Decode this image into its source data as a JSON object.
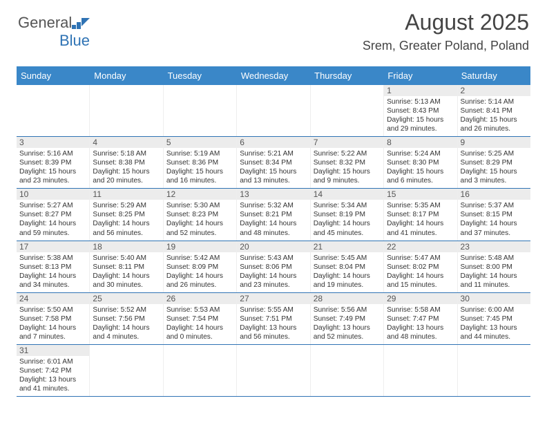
{
  "logo": {
    "text1": "General",
    "text2": "Blue"
  },
  "title": "August 2025",
  "location": "Srem, Greater Poland, Poland",
  "colors": {
    "header_bg": "#3a87c8",
    "header_fg": "#ffffff",
    "row_border": "#2f73b4",
    "daynum_bg": "#ececec",
    "text": "#333333"
  },
  "day_labels": [
    "Sunday",
    "Monday",
    "Tuesday",
    "Wednesday",
    "Thursday",
    "Friday",
    "Saturday"
  ],
  "first_weekday_index": 5,
  "days": [
    {
      "n": 1,
      "sr": "5:13 AM",
      "ss": "8:43 PM",
      "dl": "15 hours and 29 minutes."
    },
    {
      "n": 2,
      "sr": "5:14 AM",
      "ss": "8:41 PM",
      "dl": "15 hours and 26 minutes."
    },
    {
      "n": 3,
      "sr": "5:16 AM",
      "ss": "8:39 PM",
      "dl": "15 hours and 23 minutes."
    },
    {
      "n": 4,
      "sr": "5:18 AM",
      "ss": "8:38 PM",
      "dl": "15 hours and 20 minutes."
    },
    {
      "n": 5,
      "sr": "5:19 AM",
      "ss": "8:36 PM",
      "dl": "15 hours and 16 minutes."
    },
    {
      "n": 6,
      "sr": "5:21 AM",
      "ss": "8:34 PM",
      "dl": "15 hours and 13 minutes."
    },
    {
      "n": 7,
      "sr": "5:22 AM",
      "ss": "8:32 PM",
      "dl": "15 hours and 9 minutes."
    },
    {
      "n": 8,
      "sr": "5:24 AM",
      "ss": "8:30 PM",
      "dl": "15 hours and 6 minutes."
    },
    {
      "n": 9,
      "sr": "5:25 AM",
      "ss": "8:29 PM",
      "dl": "15 hours and 3 minutes."
    },
    {
      "n": 10,
      "sr": "5:27 AM",
      "ss": "8:27 PM",
      "dl": "14 hours and 59 minutes."
    },
    {
      "n": 11,
      "sr": "5:29 AM",
      "ss": "8:25 PM",
      "dl": "14 hours and 56 minutes."
    },
    {
      "n": 12,
      "sr": "5:30 AM",
      "ss": "8:23 PM",
      "dl": "14 hours and 52 minutes."
    },
    {
      "n": 13,
      "sr": "5:32 AM",
      "ss": "8:21 PM",
      "dl": "14 hours and 48 minutes."
    },
    {
      "n": 14,
      "sr": "5:34 AM",
      "ss": "8:19 PM",
      "dl": "14 hours and 45 minutes."
    },
    {
      "n": 15,
      "sr": "5:35 AM",
      "ss": "8:17 PM",
      "dl": "14 hours and 41 minutes."
    },
    {
      "n": 16,
      "sr": "5:37 AM",
      "ss": "8:15 PM",
      "dl": "14 hours and 37 minutes."
    },
    {
      "n": 17,
      "sr": "5:38 AM",
      "ss": "8:13 PM",
      "dl": "14 hours and 34 minutes."
    },
    {
      "n": 18,
      "sr": "5:40 AM",
      "ss": "8:11 PM",
      "dl": "14 hours and 30 minutes."
    },
    {
      "n": 19,
      "sr": "5:42 AM",
      "ss": "8:09 PM",
      "dl": "14 hours and 26 minutes."
    },
    {
      "n": 20,
      "sr": "5:43 AM",
      "ss": "8:06 PM",
      "dl": "14 hours and 23 minutes."
    },
    {
      "n": 21,
      "sr": "5:45 AM",
      "ss": "8:04 PM",
      "dl": "14 hours and 19 minutes."
    },
    {
      "n": 22,
      "sr": "5:47 AM",
      "ss": "8:02 PM",
      "dl": "14 hours and 15 minutes."
    },
    {
      "n": 23,
      "sr": "5:48 AM",
      "ss": "8:00 PM",
      "dl": "14 hours and 11 minutes."
    },
    {
      "n": 24,
      "sr": "5:50 AM",
      "ss": "7:58 PM",
      "dl": "14 hours and 7 minutes."
    },
    {
      "n": 25,
      "sr": "5:52 AM",
      "ss": "7:56 PM",
      "dl": "14 hours and 4 minutes."
    },
    {
      "n": 26,
      "sr": "5:53 AM",
      "ss": "7:54 PM",
      "dl": "14 hours and 0 minutes."
    },
    {
      "n": 27,
      "sr": "5:55 AM",
      "ss": "7:51 PM",
      "dl": "13 hours and 56 minutes."
    },
    {
      "n": 28,
      "sr": "5:56 AM",
      "ss": "7:49 PM",
      "dl": "13 hours and 52 minutes."
    },
    {
      "n": 29,
      "sr": "5:58 AM",
      "ss": "7:47 PM",
      "dl": "13 hours and 48 minutes."
    },
    {
      "n": 30,
      "sr": "6:00 AM",
      "ss": "7:45 PM",
      "dl": "13 hours and 44 minutes."
    },
    {
      "n": 31,
      "sr": "6:01 AM",
      "ss": "7:42 PM",
      "dl": "13 hours and 41 minutes."
    }
  ],
  "labels": {
    "sunrise": "Sunrise:",
    "sunset": "Sunset:",
    "daylight": "Daylight:"
  }
}
